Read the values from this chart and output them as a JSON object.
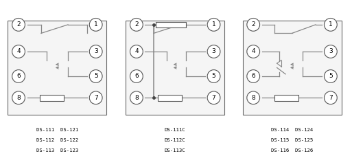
{
  "panel1_labels": [
    "DS-111  DS-121",
    "DS-112  DS-122",
    "DS-113  DS-123"
  ],
  "panel2_labels": [
    "DS-111C",
    "DS-112C",
    "DS-113C"
  ],
  "panel3_labels": [
    "DS-114  DS-124",
    "DS-115  DS-125",
    "DS-116  DS-126"
  ],
  "lc": "#888888",
  "bc": "#444444",
  "fig_w": 5.13,
  "fig_h": 2.27
}
